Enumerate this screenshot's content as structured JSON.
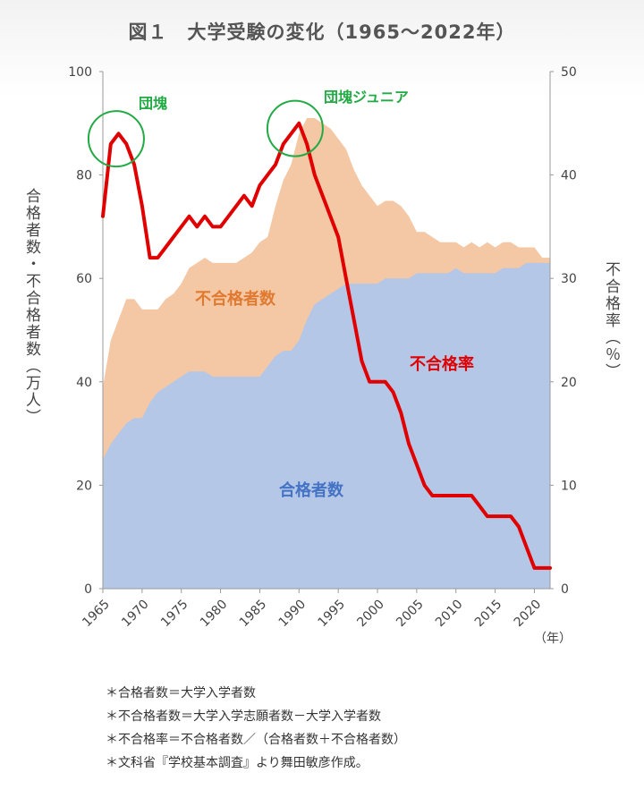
{
  "chart_data": {
    "type": "area",
    "title": "図１　大学受験の変化（1965～2022年）",
    "x_tick_labels": [
      "1965",
      "1970",
      "1975",
      "1980",
      "1985",
      "1990",
      "1995",
      "2000",
      "2005",
      "2010",
      "2015",
      "2020"
    ],
    "x_unit": "（年）",
    "y_left_label": "合格者数・不合格者数（万人）",
    "y_left_ticks": [
      "0",
      "20",
      "40",
      "60",
      "80",
      "100"
    ],
    "y_left_range": [
      0,
      100
    ],
    "y_right_label": "不合格率（％）",
    "y_right_ticks": [
      "0",
      "10",
      "20",
      "30",
      "40",
      "50"
    ],
    "y_right_range": [
      0,
      50
    ],
    "x_range": [
      1965,
      2022
    ],
    "years": [
      1965,
      1966,
      1967,
      1968,
      1969,
      1970,
      1971,
      1972,
      1973,
      1974,
      1975,
      1976,
      1977,
      1978,
      1979,
      1980,
      1981,
      1982,
      1983,
      1984,
      1985,
      1986,
      1987,
      1988,
      1989,
      1990,
      1991,
      1992,
      1993,
      1994,
      1995,
      1996,
      1997,
      1998,
      1999,
      2000,
      2001,
      2002,
      2003,
      2004,
      2005,
      2006,
      2007,
      2008,
      2009,
      2010,
      2011,
      2012,
      2013,
      2014,
      2015,
      2016,
      2017,
      2018,
      2019,
      2020,
      2021,
      2022
    ],
    "series": [
      {
        "name": "合格者数",
        "axis": "left",
        "color": "#b4c7e7",
        "values": [
          25,
          28,
          30,
          32,
          33,
          33,
          36,
          38,
          39,
          40,
          41,
          42,
          42,
          42,
          41,
          41,
          41,
          41,
          41,
          41,
          41,
          43,
          45,
          46,
          46,
          48,
          52,
          55,
          56,
          57,
          58,
          59,
          59,
          59,
          59,
          59,
          60,
          60,
          60,
          60,
          61,
          61,
          61,
          61,
          61,
          62,
          61,
          61,
          61,
          61,
          61,
          62,
          62,
          62,
          63,
          63,
          63,
          63
        ]
      },
      {
        "name": "不合格者数",
        "axis": "left",
        "color": "#f4c7a5",
        "values": [
          14,
          20,
          22,
          24,
          23,
          21,
          18,
          16,
          17,
          17,
          18,
          20,
          21,
          22,
          22,
          22,
          22,
          22,
          23,
          24,
          26,
          25,
          29,
          33,
          36,
          40,
          39,
          36,
          34,
          32,
          29,
          26,
          22,
          19,
          17,
          15,
          15,
          15,
          14,
          12,
          8,
          8,
          7,
          6,
          6,
          5,
          5,
          6,
          5,
          6,
          5,
          5,
          5,
          4,
          3,
          3,
          1,
          1
        ]
      },
      {
        "name": "不合格率",
        "axis": "right",
        "color": "#e00000",
        "values": [
          36,
          43,
          44,
          43,
          41,
          37,
          32,
          32,
          33,
          34,
          35,
          36,
          35,
          36,
          35,
          35,
          36,
          37,
          38,
          37,
          39,
          40,
          41,
          43,
          44,
          45,
          43,
          40,
          38,
          36,
          34,
          30,
          26,
          22,
          20,
          20,
          20,
          19,
          17,
          14,
          12,
          10,
          9,
          9,
          9,
          9,
          9,
          9,
          8,
          7,
          7,
          7,
          7,
          6,
          4,
          2,
          2,
          2
        ]
      }
    ],
    "annotations": {
      "baby_boom": "団塊",
      "baby_boom_junior": "団塊ジュニア",
      "rejected_label": "不合格者数",
      "rate_label": "不合格率",
      "accepted_label": "合格者数"
    },
    "notes": [
      "＊合格者数＝大学入学者数",
      "＊不合格者数＝大学入学志願者数－大学入学者数",
      "＊不合格率＝不合格者数／（合格者数＋不合格者数）",
      "＊文科省『学校基本調査』より舞田敏彦作成。"
    ]
  }
}
